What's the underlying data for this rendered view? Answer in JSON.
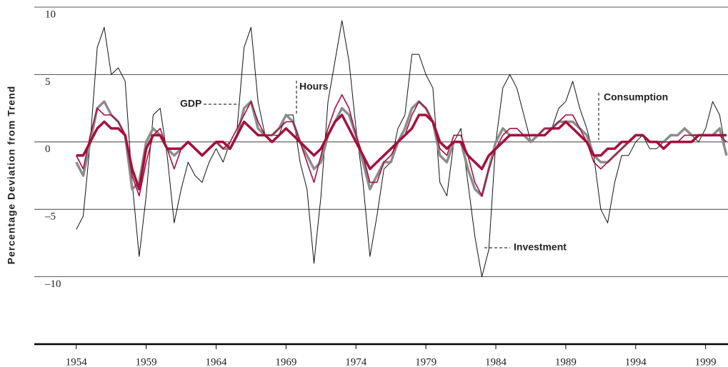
{
  "chart_data": {
    "type": "line",
    "y_label": "Percentage Deviation from Trend",
    "x": [
      1954,
      1954.5,
      1955,
      1955.5,
      1956,
      1956.5,
      1957,
      1957.5,
      1958,
      1958.5,
      1959,
      1959.5,
      1960,
      1960.5,
      1961,
      1961.5,
      1962,
      1962.5,
      1963,
      1963.5,
      1964,
      1964.5,
      1965,
      1965.5,
      1966,
      1966.5,
      1967,
      1967.5,
      1968,
      1968.5,
      1969,
      1969.5,
      1970,
      1970.5,
      1971,
      1971.5,
      1972,
      1972.5,
      1973,
      1973.5,
      1974,
      1974.5,
      1975,
      1975.5,
      1976,
      1976.5,
      1977,
      1977.5,
      1978,
      1978.5,
      1979,
      1979.5,
      1980,
      1980.5,
      1981,
      1981.5,
      1982,
      1982.5,
      1983,
      1983.5,
      1984,
      1984.5,
      1985,
      1985.5,
      1986,
      1986.5,
      1987,
      1987.5,
      1988,
      1988.5,
      1989,
      1989.5,
      1990,
      1990.5,
      1991,
      1991.5,
      1992,
      1992.5,
      1993,
      1993.5,
      1994,
      1994.5,
      1995,
      1995.5,
      1996,
      1996.5,
      1997,
      1997.5,
      1998,
      1998.5,
      1999,
      1999.5,
      2000,
      2000.5
    ],
    "series": [
      {
        "name": "Investment",
        "color": "#111111",
        "width": 1,
        "values": [
          -6.5,
          -5.5,
          0,
          7,
          8.5,
          5,
          5.5,
          4.5,
          -3,
          -8.5,
          -4,
          2,
          2.5,
          -1,
          -6,
          -3.5,
          -1.5,
          -2.5,
          -3,
          -1.5,
          -0.5,
          -1.5,
          0,
          1,
          7,
          8.5,
          3,
          0.5,
          0.5,
          0.5,
          2,
          2,
          -1.5,
          -3.5,
          -9,
          -4,
          3,
          6,
          9,
          6,
          1,
          -3,
          -8.5,
          -5.5,
          -2,
          -1.5,
          1,
          2,
          6.5,
          6.5,
          5,
          4,
          -3,
          -4,
          0,
          1,
          -3,
          -7,
          -10,
          -8,
          0,
          4,
          5,
          4,
          2,
          0,
          0.5,
          1,
          1,
          2.5,
          3,
          4.5,
          2.5,
          1,
          -1,
          -5,
          -6,
          -3,
          -1,
          -1,
          0,
          0.5,
          -0.5,
          -0.5,
          0,
          0.5,
          0.5,
          1,
          0.5,
          0,
          1,
          3,
          2,
          -1
        ]
      },
      {
        "name": "GDP",
        "color": "#8c8c8c",
        "width": 3.5,
        "values": [
          -1.5,
          -2.5,
          0,
          2.5,
          3,
          2,
          1.5,
          0.5,
          -3.5,
          -3,
          0,
          1,
          0.5,
          -0.5,
          -1,
          -0.5,
          0,
          -0.5,
          -1,
          -0.5,
          0,
          -0.5,
          -0.5,
          0.5,
          2.5,
          3,
          1,
          0.5,
          0.5,
          1,
          2,
          1.5,
          0,
          -1,
          -2,
          -1.5,
          0.5,
          1.5,
          2.5,
          2,
          0.5,
          -1.5,
          -3.5,
          -2.5,
          -1.5,
          -1.5,
          0,
          1,
          2.5,
          3,
          2.5,
          1.5,
          -1,
          -1.5,
          0,
          0,
          -2,
          -3.5,
          -4,
          -2,
          0,
          1,
          0.5,
          0.5,
          0.5,
          0,
          0.5,
          1,
          1,
          1.5,
          1.5,
          1.5,
          1,
          0.5,
          -1,
          -1.5,
          -1.5,
          -1,
          -0.5,
          0,
          0.5,
          0.5,
          0,
          0,
          0,
          0.5,
          0.5,
          1,
          0.5,
          0.5,
          0.5,
          0.5,
          1,
          -1
        ]
      },
      {
        "name": "Hours",
        "color": "#a50f3c",
        "width": 1.6,
        "values": [
          -1,
          -2,
          0.5,
          2.5,
          2,
          2,
          1.5,
          0.5,
          -2.5,
          -4,
          -1.5,
          0.5,
          1,
          -0.5,
          -2,
          -0.5,
          0,
          -0.5,
          -1,
          -0.5,
          0,
          -0.5,
          0,
          1,
          2,
          3,
          1.5,
          0.5,
          0.5,
          1,
          1.5,
          1.5,
          0,
          -1.5,
          -3,
          -1,
          1,
          2.5,
          3.5,
          2.5,
          0.5,
          -1,
          -3,
          -3,
          -1.5,
          -1,
          0,
          0.5,
          2,
          3,
          2.5,
          1.5,
          -0.5,
          -1,
          0.5,
          0.5,
          -1,
          -3,
          -4,
          -2,
          -0.5,
          0.5,
          1,
          1,
          0.5,
          0.5,
          0.5,
          1,
          1,
          1.5,
          2,
          2,
          1,
          0,
          -1.5,
          -2,
          -1.5,
          -1,
          -0.5,
          0,
          0.5,
          0.5,
          0,
          0,
          0,
          0,
          0,
          0.5,
          0.5,
          0.5,
          0.5,
          0.5,
          0.5,
          0
        ]
      },
      {
        "name": "Consumption",
        "color": "#a50f3c",
        "width": 3.5,
        "values": [
          -1,
          -1,
          0,
          1,
          1.5,
          1,
          1,
          0.5,
          -2,
          -3.5,
          -0.5,
          0.5,
          0.5,
          -0.5,
          -0.5,
          -0.5,
          0,
          -0.5,
          -1,
          -0.5,
          0,
          0,
          -0.5,
          0.5,
          1.5,
          1,
          0.5,
          0.5,
          0,
          0.5,
          1,
          0.5,
          0,
          -0.5,
          -1,
          -0.5,
          0.5,
          1.5,
          2,
          1,
          0,
          -1,
          -2,
          -1.5,
          -1,
          -0.5,
          0,
          0.5,
          1,
          2,
          2,
          1.5,
          0,
          -0.5,
          0,
          0,
          -1,
          -1.5,
          -2,
          -1,
          -0.5,
          0,
          0.5,
          0.5,
          0.5,
          0.5,
          0.5,
          0.5,
          1,
          1,
          1.5,
          1,
          0.5,
          0,
          -1,
          -1,
          -0.5,
          -0.5,
          0,
          0,
          0.5,
          0.5,
          0,
          0,
          -0.5,
          0,
          0,
          0,
          0,
          0.5,
          0.5,
          0.5,
          0.5,
          0.5
        ]
      }
    ],
    "xlim": [
      1951,
      2000.6
    ],
    "xticks": [
      1954,
      1959,
      1964,
      1969,
      1974,
      1979,
      1984,
      1989,
      1994,
      1999
    ],
    "ylim": [
      -15,
      10
    ],
    "yticks": [
      {
        "value": -10,
        "label": "–10"
      },
      {
        "value": -5,
        "label": "–5"
      },
      0,
      5,
      10
    ],
    "grid": true
  }
}
